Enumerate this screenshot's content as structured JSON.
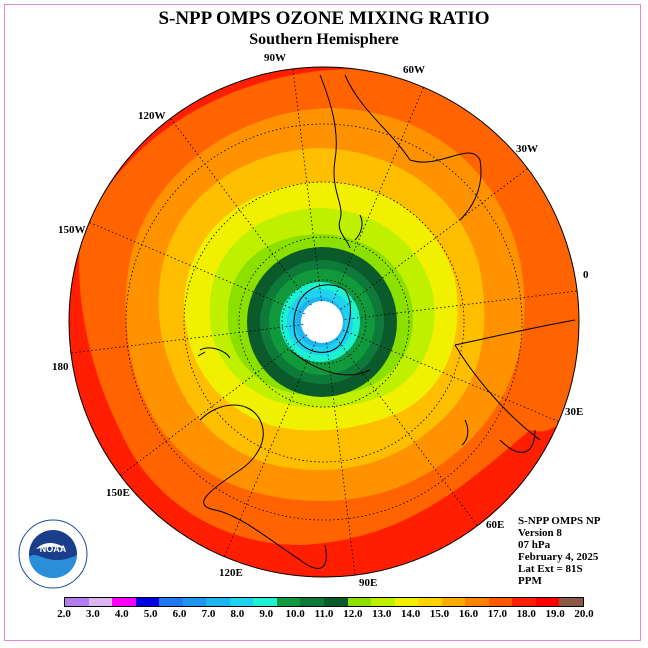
{
  "title": "S-NPP OMPS OZONE MIXING RATIO",
  "subtitle": "Southern Hemisphere",
  "longitude_labels": [
    "90W",
    "60W",
    "30W",
    "0",
    "30E",
    "60E",
    "90E",
    "120E",
    "150E",
    "180",
    "150W",
    "120W"
  ],
  "info": {
    "line1": "S-NPP OMPS NP",
    "line2": "Version 8",
    "line3": "07 hPa",
    "line4": "February 4, 2025",
    "line5": "Lat Ext = 81S",
    "line6": "PPM"
  },
  "colorbar": {
    "colors": [
      "#b57cf0",
      "#dcb6f0",
      "#ff00ff",
      "#0000e0",
      "#1e78f0",
      "#1e96f0",
      "#1eb4f0",
      "#1ed2f0",
      "#1ef0d2",
      "#109a3c",
      "#0e7a3a",
      "#0b5a2c",
      "#8ce000",
      "#bef000",
      "#f0f000",
      "#ffd200",
      "#ffaa00",
      "#ff8200",
      "#ff5a00",
      "#ff1e00",
      "#ff0000",
      "#8a5a46"
    ],
    "labels": [
      "2.0",
      "3.0",
      "4.0",
      "5.0",
      "6.0",
      "7.0",
      "8.0",
      "9.0",
      "10.0",
      "11.0",
      "12.0",
      "13.0",
      "14.0",
      "15.0",
      "16.0",
      "17.0",
      "18.0",
      "19.0",
      "20.0"
    ]
  },
  "logo": {
    "text": "NOAA"
  }
}
